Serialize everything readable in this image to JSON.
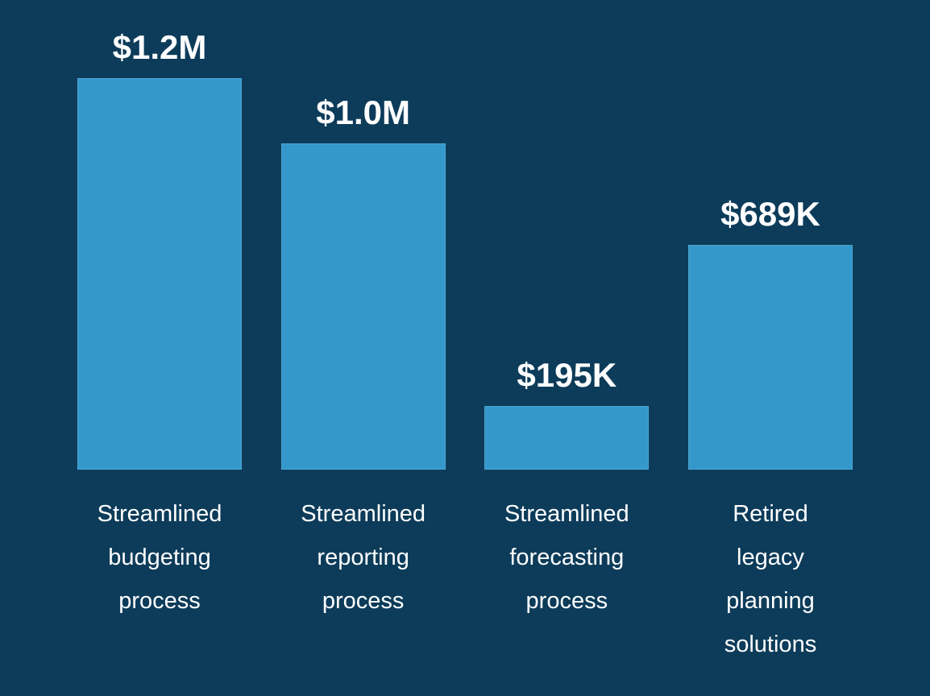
{
  "page": {
    "background_color": "#0d3c5a",
    "text_color": "#ffffff"
  },
  "chart_data": {
    "type": "bar",
    "title": "",
    "xlabel": "",
    "ylabel": "",
    "categories": [
      [
        "Streamlined",
        "budgeting",
        "process"
      ],
      [
        "Streamlined",
        "reporting",
        "process"
      ],
      [
        "Streamlined",
        "forecasting",
        "process"
      ],
      [
        "Retired",
        "legacy",
        "planning",
        "solutions"
      ]
    ],
    "values": [
      1200000,
      1000000,
      195000,
      689000
    ],
    "value_labels": [
      "$1.2M",
      "$1.0M",
      "$195K",
      "$689K"
    ],
    "ylim": [
      0,
      1200000
    ],
    "grid": false,
    "legend": false,
    "axes_visible": false,
    "bar_color": "#3498cb",
    "bar_border_color": "#4da4cf",
    "label_color": "#ffffff"
  }
}
